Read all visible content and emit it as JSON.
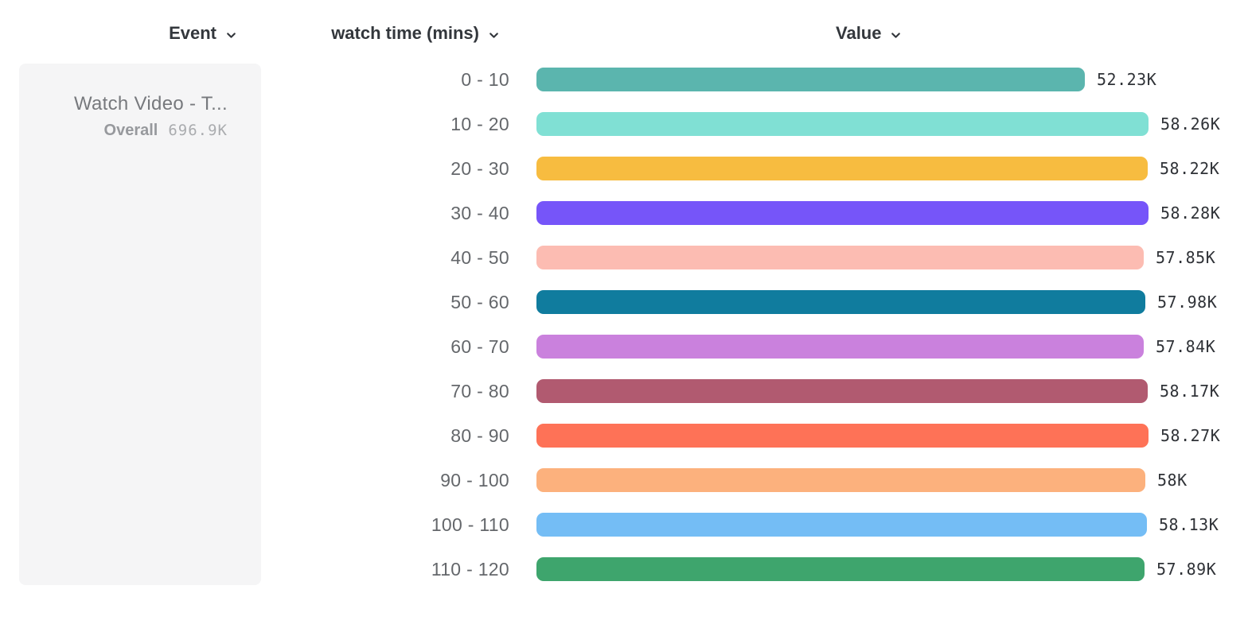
{
  "header": {
    "columns": [
      {
        "label": "Event"
      },
      {
        "label": "watch time (mins)"
      },
      {
        "label": "Value"
      }
    ]
  },
  "event_card": {
    "title": "Watch Video - T...",
    "overall_label": "Overall",
    "overall_value": "696.9K"
  },
  "chart_data": {
    "type": "bar",
    "orientation": "horizontal",
    "title": "",
    "series_name": "watch time (mins)",
    "value_column": "Value",
    "categories": [
      "0 - 10",
      "10 - 20",
      "20 - 30",
      "30 - 40",
      "40 - 50",
      "50 - 60",
      "60 - 70",
      "70 - 80",
      "80 - 90",
      "90 - 100",
      "100 - 110",
      "110 - 120"
    ],
    "values": [
      52230,
      58260,
      58220,
      58280,
      57850,
      57980,
      57840,
      58170,
      58270,
      58000,
      58130,
      57890
    ],
    "value_labels": [
      "52.23K",
      "58.26K",
      "58.22K",
      "58.28K",
      "57.85K",
      "57.98K",
      "57.84K",
      "58.17K",
      "58.27K",
      "58K",
      "58.13K",
      "57.89K"
    ],
    "bar_colors": [
      "#5bb5ae",
      "#80e0d4",
      "#f7bc40",
      "#7655f9",
      "#fcbcb2",
      "#107c9e",
      "#ca81dd",
      "#b15a70",
      "#fe7257",
      "#fcb17d",
      "#74bdf5",
      "#3ea56d"
    ],
    "max_value": 58280,
    "xlim": [
      0,
      58280
    ],
    "grid": false,
    "legend_position": "left-card",
    "text_color": "#2f3237",
    "category_color": "#64676b"
  }
}
